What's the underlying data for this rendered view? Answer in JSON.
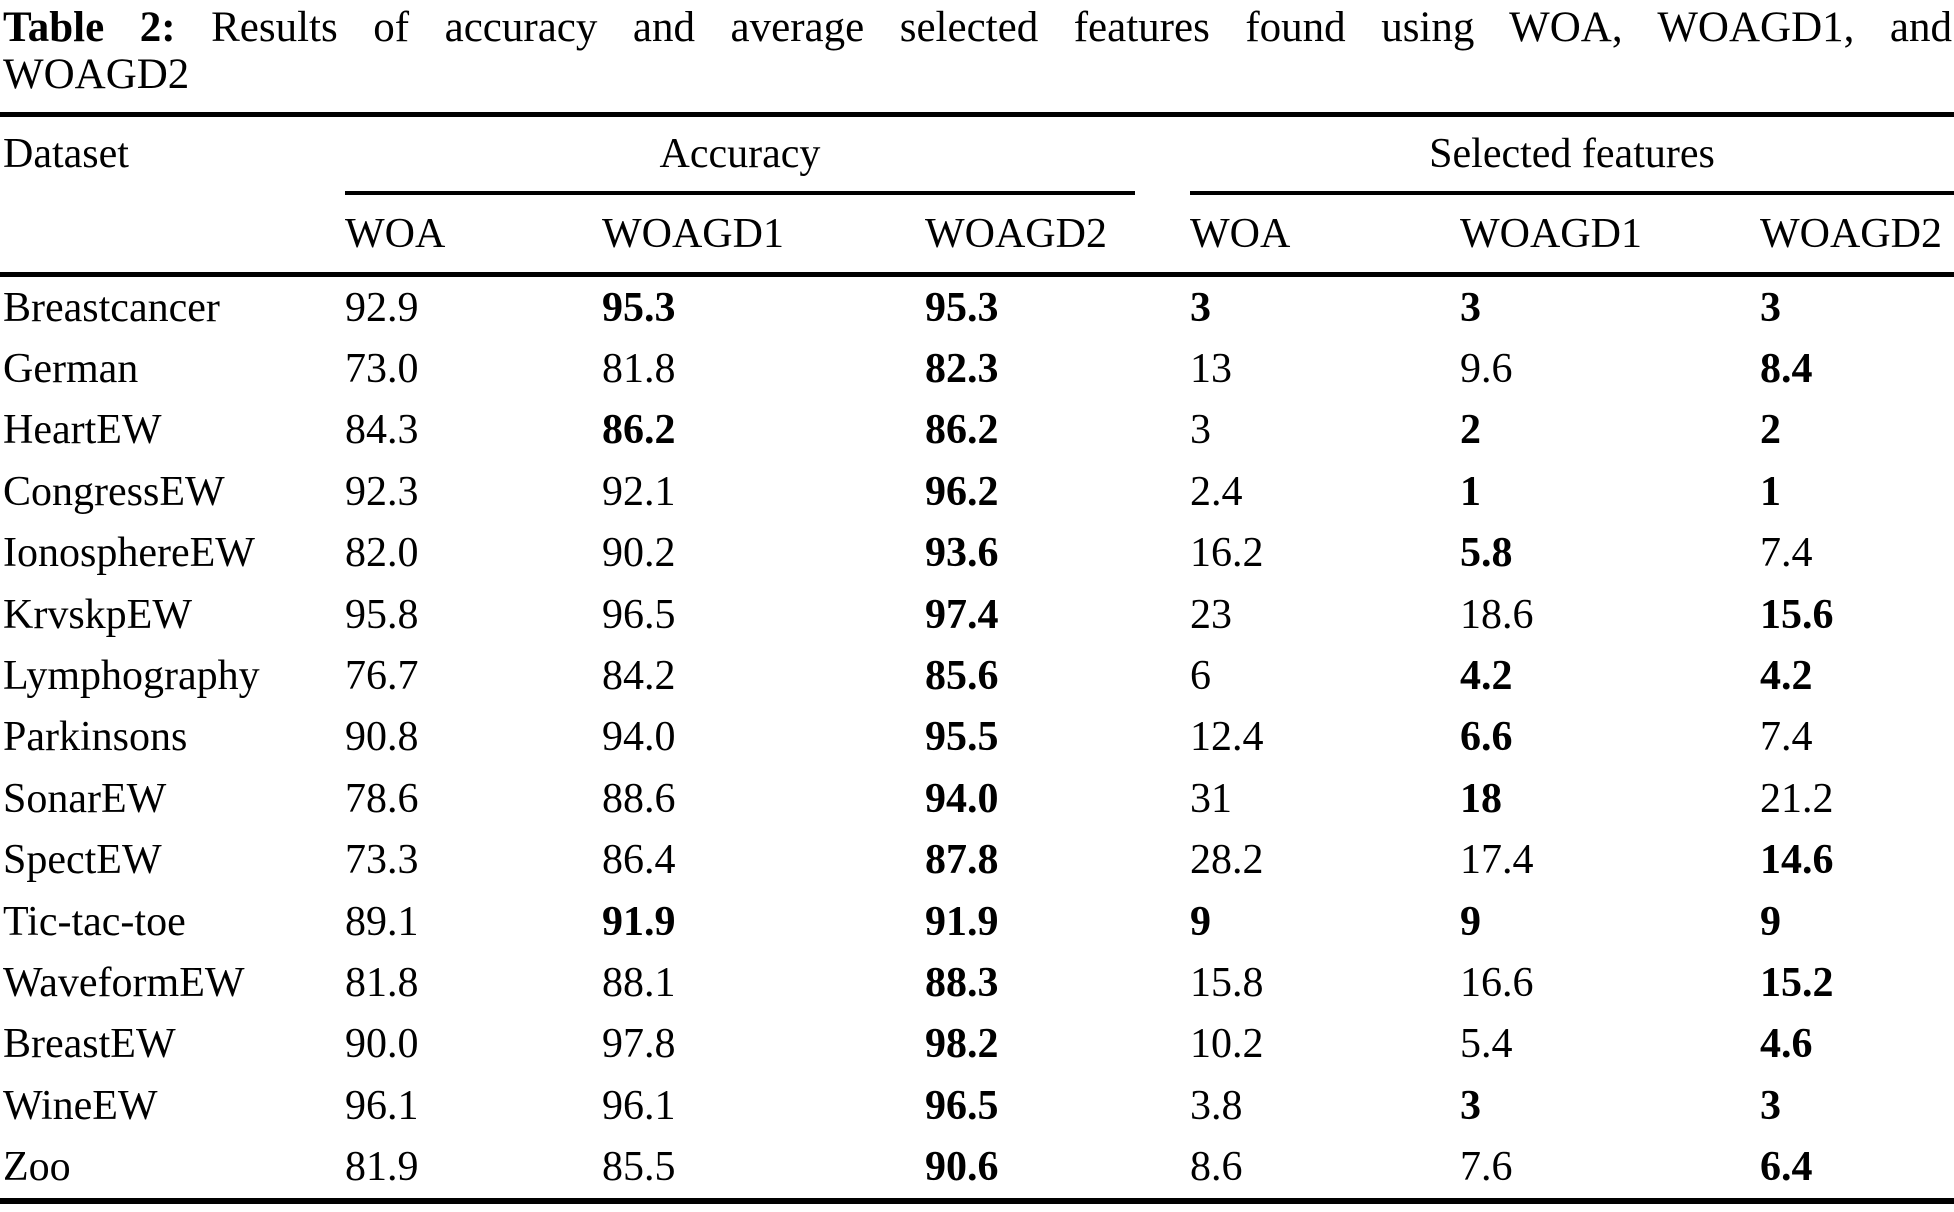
{
  "caption": {
    "label": "Table 2:",
    "line1_rest": "Results of accuracy and average selected features found using WOA, WOAGD1, and",
    "line2": "WOAGD2"
  },
  "table": {
    "col_dataset": "Dataset",
    "group_accuracy": "Accuracy",
    "group_features": "Selected features",
    "subheaders": [
      "WOA",
      "WOAGD1",
      "WOAGD2",
      "WOA",
      "WOAGD1",
      "WOAGD2"
    ],
    "rows": [
      {
        "name": "Breastcancer",
        "acc": [
          {
            "v": "92.9",
            "b": false
          },
          {
            "v": "95.3",
            "b": true
          },
          {
            "v": "95.3",
            "b": true
          }
        ],
        "feat": [
          {
            "v": "3",
            "b": true
          },
          {
            "v": "3",
            "b": true
          },
          {
            "v": "3",
            "b": true
          }
        ]
      },
      {
        "name": "German",
        "acc": [
          {
            "v": "73.0",
            "b": false
          },
          {
            "v": "81.8",
            "b": false
          },
          {
            "v": "82.3",
            "b": true
          }
        ],
        "feat": [
          {
            "v": "13",
            "b": false
          },
          {
            "v": "9.6",
            "b": false
          },
          {
            "v": "8.4",
            "b": true
          }
        ]
      },
      {
        "name": "HeartEW",
        "acc": [
          {
            "v": "84.3",
            "b": false
          },
          {
            "v": "86.2",
            "b": true
          },
          {
            "v": "86.2",
            "b": true
          }
        ],
        "feat": [
          {
            "v": "3",
            "b": false
          },
          {
            "v": "2",
            "b": true
          },
          {
            "v": "2",
            "b": true
          }
        ]
      },
      {
        "name": "CongressEW",
        "acc": [
          {
            "v": "92.3",
            "b": false
          },
          {
            "v": "92.1",
            "b": false
          },
          {
            "v": "96.2",
            "b": true
          }
        ],
        "feat": [
          {
            "v": "2.4",
            "b": false
          },
          {
            "v": "1",
            "b": true
          },
          {
            "v": "1",
            "b": true
          }
        ]
      },
      {
        "name": "IonosphereEW",
        "acc": [
          {
            "v": "82.0",
            "b": false
          },
          {
            "v": "90.2",
            "b": false
          },
          {
            "v": "93.6",
            "b": true
          }
        ],
        "feat": [
          {
            "v": "16.2",
            "b": false
          },
          {
            "v": "5.8",
            "b": true
          },
          {
            "v": "7.4",
            "b": false
          }
        ]
      },
      {
        "name": "KrvskpEW",
        "acc": [
          {
            "v": "95.8",
            "b": false
          },
          {
            "v": "96.5",
            "b": false
          },
          {
            "v": "97.4",
            "b": true
          }
        ],
        "feat": [
          {
            "v": "23",
            "b": false
          },
          {
            "v": "18.6",
            "b": false
          },
          {
            "v": "15.6",
            "b": true
          }
        ]
      },
      {
        "name": "Lymphography",
        "acc": [
          {
            "v": "76.7",
            "b": false
          },
          {
            "v": "84.2",
            "b": false
          },
          {
            "v": "85.6",
            "b": true
          }
        ],
        "feat": [
          {
            "v": "6",
            "b": false
          },
          {
            "v": "4.2",
            "b": true
          },
          {
            "v": "4.2",
            "b": true
          }
        ]
      },
      {
        "name": "Parkinsons",
        "acc": [
          {
            "v": "90.8",
            "b": false
          },
          {
            "v": "94.0",
            "b": false
          },
          {
            "v": "95.5",
            "b": true
          }
        ],
        "feat": [
          {
            "v": "12.4",
            "b": false
          },
          {
            "v": "6.6",
            "b": true
          },
          {
            "v": "7.4",
            "b": false
          }
        ]
      },
      {
        "name": "SonarEW",
        "acc": [
          {
            "v": "78.6",
            "b": false
          },
          {
            "v": "88.6",
            "b": false
          },
          {
            "v": "94.0",
            "b": true
          }
        ],
        "feat": [
          {
            "v": "31",
            "b": false
          },
          {
            "v": "18",
            "b": true
          },
          {
            "v": "21.2",
            "b": false
          }
        ]
      },
      {
        "name": "SpectEW",
        "acc": [
          {
            "v": "73.3",
            "b": false
          },
          {
            "v": "86.4",
            "b": false
          },
          {
            "v": "87.8",
            "b": true
          }
        ],
        "feat": [
          {
            "v": "28.2",
            "b": false
          },
          {
            "v": "17.4",
            "b": false
          },
          {
            "v": "14.6",
            "b": true
          }
        ]
      },
      {
        "name": "Tic-tac-toe",
        "acc": [
          {
            "v": "89.1",
            "b": false
          },
          {
            "v": "91.9",
            "b": true
          },
          {
            "v": "91.9",
            "b": true
          }
        ],
        "feat": [
          {
            "v": "9",
            "b": true
          },
          {
            "v": "9",
            "b": true
          },
          {
            "v": "9",
            "b": true
          }
        ]
      },
      {
        "name": "WaveformEW",
        "acc": [
          {
            "v": "81.8",
            "b": false
          },
          {
            "v": "88.1",
            "b": false
          },
          {
            "v": "88.3",
            "b": true
          }
        ],
        "feat": [
          {
            "v": "15.8",
            "b": false
          },
          {
            "v": "16.6",
            "b": false
          },
          {
            "v": "15.2",
            "b": true
          }
        ]
      },
      {
        "name": "BreastEW",
        "acc": [
          {
            "v": "90.0",
            "b": false
          },
          {
            "v": "97.8",
            "b": false
          },
          {
            "v": "98.2",
            "b": true
          }
        ],
        "feat": [
          {
            "v": "10.2",
            "b": false
          },
          {
            "v": "5.4",
            "b": false
          },
          {
            "v": "4.6",
            "b": true
          }
        ]
      },
      {
        "name": "WineEW",
        "acc": [
          {
            "v": "96.1",
            "b": false
          },
          {
            "v": "96.1",
            "b": false
          },
          {
            "v": "96.5",
            "b": true
          }
        ],
        "feat": [
          {
            "v": "3.8",
            "b": false
          },
          {
            "v": "3",
            "b": true
          },
          {
            "v": "3",
            "b": true
          }
        ]
      },
      {
        "name": "Zoo",
        "acc": [
          {
            "v": "81.9",
            "b": false
          },
          {
            "v": "85.5",
            "b": false
          },
          {
            "v": "90.6",
            "b": true
          }
        ],
        "feat": [
          {
            "v": "8.6",
            "b": false
          },
          {
            "v": "7.6",
            "b": false
          },
          {
            "v": "6.4",
            "b": true
          }
        ]
      }
    ]
  }
}
